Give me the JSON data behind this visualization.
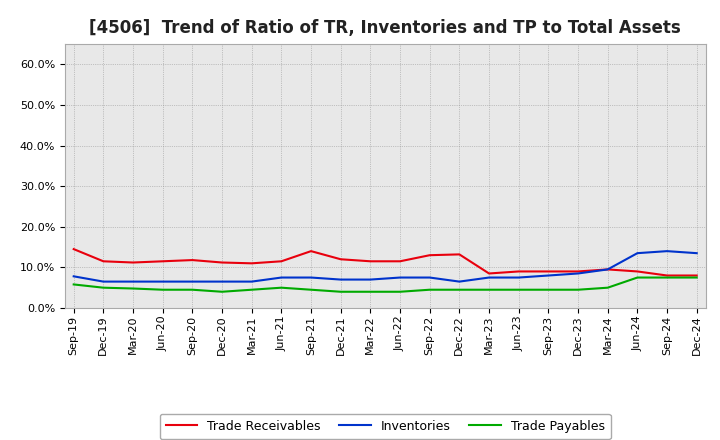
{
  "title": "[4506]  Trend of Ratio of TR, Inventories and TP to Total Assets",
  "x_labels": [
    "Sep-19",
    "Dec-19",
    "Mar-20",
    "Jun-20",
    "Sep-20",
    "Dec-20",
    "Mar-21",
    "Jun-21",
    "Sep-21",
    "Dec-21",
    "Mar-22",
    "Jun-22",
    "Sep-22",
    "Dec-22",
    "Mar-23",
    "Jun-23",
    "Sep-23",
    "Dec-23",
    "Mar-24",
    "Jun-24",
    "Sep-24",
    "Dec-24"
  ],
  "trade_receivables": [
    14.5,
    11.5,
    11.2,
    11.5,
    11.8,
    11.2,
    11.0,
    11.5,
    14.0,
    12.0,
    11.5,
    11.5,
    13.0,
    13.2,
    8.5,
    9.0,
    9.0,
    9.0,
    9.5,
    9.0,
    8.0,
    8.0
  ],
  "inventories": [
    7.8,
    6.5,
    6.5,
    6.5,
    6.5,
    6.5,
    6.5,
    7.5,
    7.5,
    7.0,
    7.0,
    7.5,
    7.5,
    6.5,
    7.5,
    7.5,
    8.0,
    8.5,
    9.5,
    13.5,
    14.0,
    13.5
  ],
  "trade_payables": [
    5.8,
    5.0,
    4.8,
    4.5,
    4.5,
    4.0,
    4.5,
    5.0,
    4.5,
    4.0,
    4.0,
    4.0,
    4.5,
    4.5,
    4.5,
    4.5,
    4.5,
    4.5,
    5.0,
    7.5,
    7.5,
    7.5
  ],
  "tr_color": "#e8000d",
  "inv_color": "#0033cc",
  "tp_color": "#00aa00",
  "ylim": [
    0,
    65
  ],
  "yticks": [
    0.0,
    10.0,
    20.0,
    30.0,
    40.0,
    50.0,
    60.0
  ],
  "background_color": "#ffffff",
  "plot_bg_color": "#e8e8e8",
  "grid_color": "#999999",
  "legend_tr": "Trade Receivables",
  "legend_inv": "Inventories",
  "legend_tp": "Trade Payables",
  "title_fontsize": 12,
  "tick_fontsize": 8,
  "legend_fontsize": 9
}
